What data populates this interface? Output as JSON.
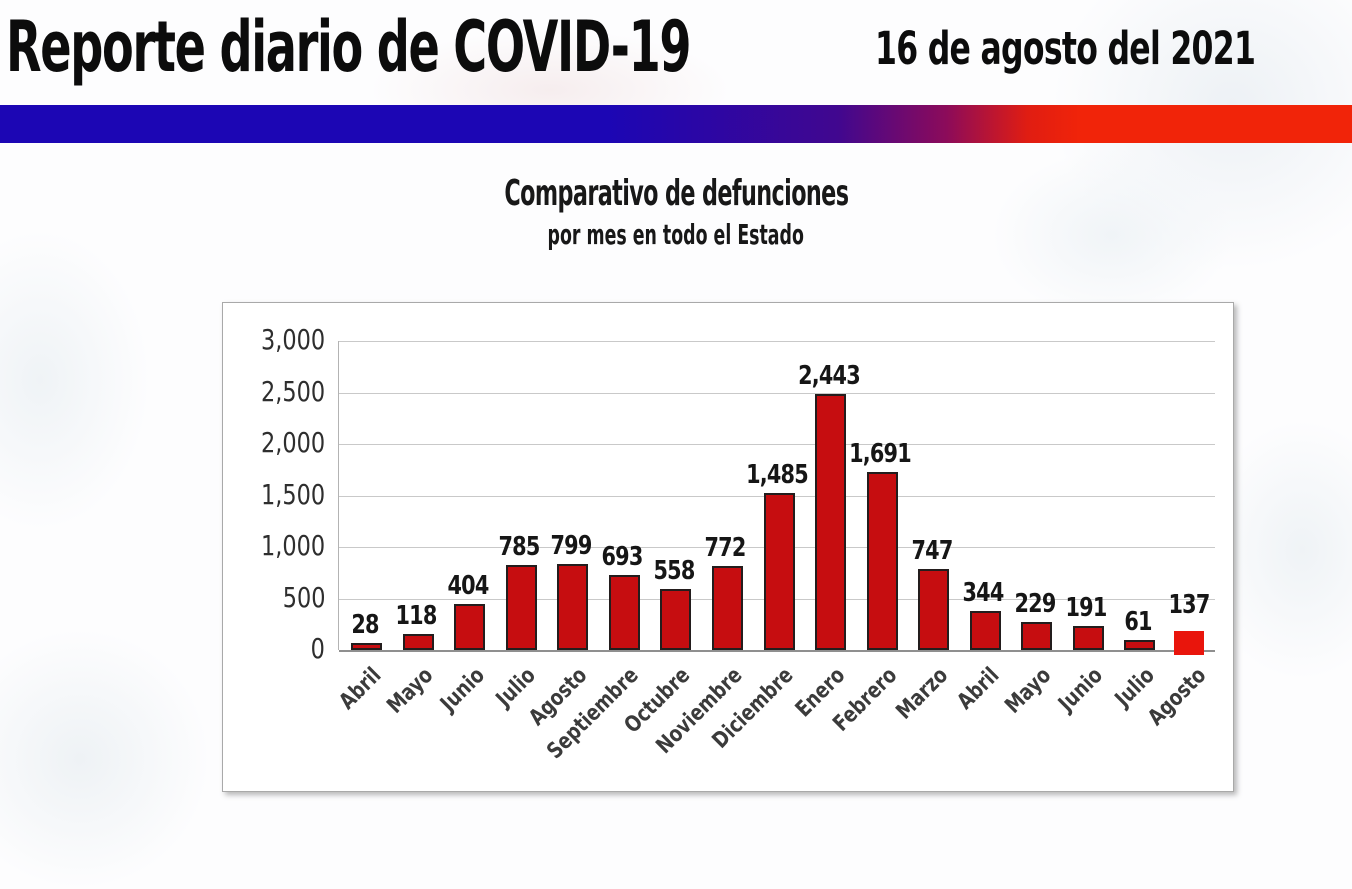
{
  "header": {
    "title": "Reporte diario de COVID-19",
    "date": "16 de agosto del 2021"
  },
  "divider": {
    "left_color": "#1c06b4",
    "right_color": "#f12409"
  },
  "chart": {
    "title": "Comparativo de defunciones",
    "subtitle": "por mes en todo el Estado"
  },
  "chart_data": {
    "type": "bar",
    "title": "Comparativo de defunciones",
    "subtitle": "por mes en todo el Estado",
    "categories": [
      "Abril",
      "Mayo",
      "Junio",
      "Julio",
      "Agosto",
      "Septiembre",
      "Octubre",
      "Noviembre",
      "Diciembre",
      "Enero",
      "Febrero",
      "Marzo",
      "Abril",
      "Mayo",
      "Junio",
      "Julio",
      "Agosto"
    ],
    "values": [
      28,
      118,
      404,
      785,
      799,
      693,
      558,
      772,
      1485,
      2443,
      1691,
      747,
      344,
      229,
      191,
      61,
      137
    ],
    "value_labels": [
      "28",
      "118",
      "404",
      "785",
      "799",
      "693",
      "558",
      "772",
      "1,485",
      "2,443",
      "1,691",
      "747",
      "344",
      "229",
      "191",
      "61",
      "137"
    ],
    "y_ticks": [
      "3,000",
      "2,500",
      "2,000",
      "1,500",
      "1,000",
      "500",
      "0"
    ],
    "ylim": [
      0,
      3000
    ],
    "grid": true,
    "legend": "none",
    "bar_color": "#c60d10",
    "bar_border_color": "#231d1d",
    "highlight_index": 16,
    "highlight_color": "#e9150c"
  }
}
